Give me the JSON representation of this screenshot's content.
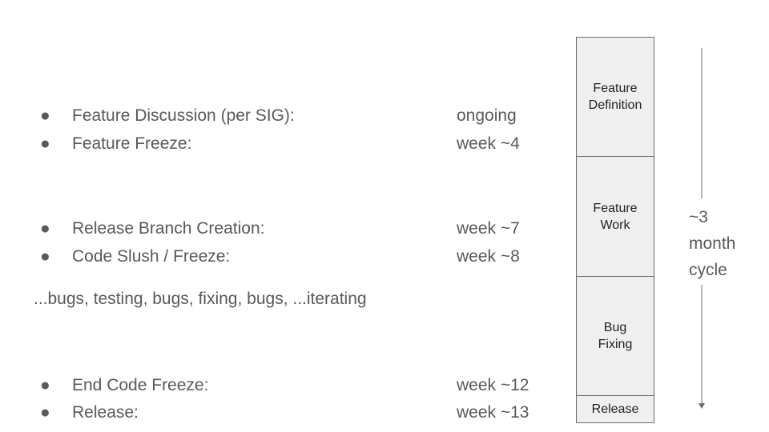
{
  "schedule": [
    {
      "label": "Feature Discussion (per SIG):",
      "value": "ongoing"
    },
    {
      "label": "Feature Freeze:",
      "value": "week ~4"
    },
    {
      "label": "Release Branch Creation:",
      "value": "week ~7"
    },
    {
      "label": "Code Slush / Freeze:",
      "value": "week ~8"
    },
    {
      "label": "End Code Freeze:",
      "value": "week ~12"
    },
    {
      "label": "Release:",
      "value": "week ~13"
    }
  ],
  "note": "...bugs, testing, bugs, fixing, bugs, ...iterating",
  "phases": [
    {
      "line1": "Feature",
      "line2": "Definition"
    },
    {
      "line1": "Feature",
      "line2": "Work"
    },
    {
      "line1": "Bug",
      "line2": "Fixing"
    },
    {
      "line1": "Release",
      "line2": ""
    }
  ],
  "cycle": {
    "line1": "~3",
    "line2": "month",
    "line3": "cycle"
  },
  "colors": {
    "text": "#595959",
    "box_fill": "#efefef",
    "box_border": "#6b6b6b"
  }
}
